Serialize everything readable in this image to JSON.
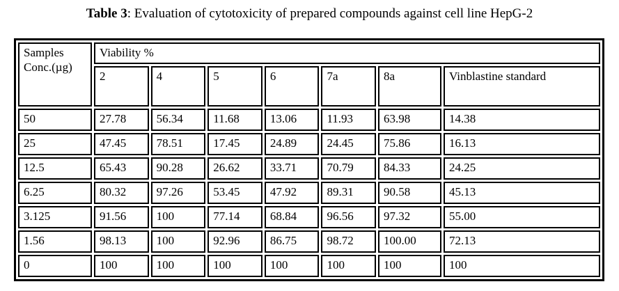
{
  "header": {
    "label": "Table 3",
    "title": ": Evaluation of cytotoxicity of prepared compounds against cell line HepG-2"
  },
  "table": {
    "corner": [
      "Samples",
      "Conc.(µg)"
    ],
    "group": "Viability %",
    "columns": [
      "2",
      "4",
      "5",
      "6",
      "7a",
      "8a",
      "Vinblastine standard"
    ],
    "rows": [
      [
        "50",
        "27.78",
        "56.34",
        "11.68",
        "13.06",
        "11.93",
        "63.98",
        "14.38"
      ],
      [
        "25",
        "47.45",
        "78.51",
        "17.45",
        "24.89",
        "24.45",
        "75.86",
        "16.13"
      ],
      [
        "12.5",
        "65.43",
        "90.28",
        "26.62",
        "33.71",
        "70.79",
        "84.33",
        "24.25"
      ],
      [
        "6.25",
        "80.32",
        "97.26",
        "53.45",
        "47.92",
        "89.31",
        "90.58",
        "45.13"
      ],
      [
        "3.125",
        "91.56",
        "100",
        "77.14",
        "68.84",
        "96.56",
        "97.32",
        "55.00"
      ],
      [
        "1.56",
        "98.13",
        "100",
        "92.96",
        "86.75",
        "98.72",
        "100.00",
        "72.13"
      ],
      [
        "0",
        "100",
        "100",
        "100",
        "100",
        "100",
        "100",
        "100"
      ]
    ]
  }
}
